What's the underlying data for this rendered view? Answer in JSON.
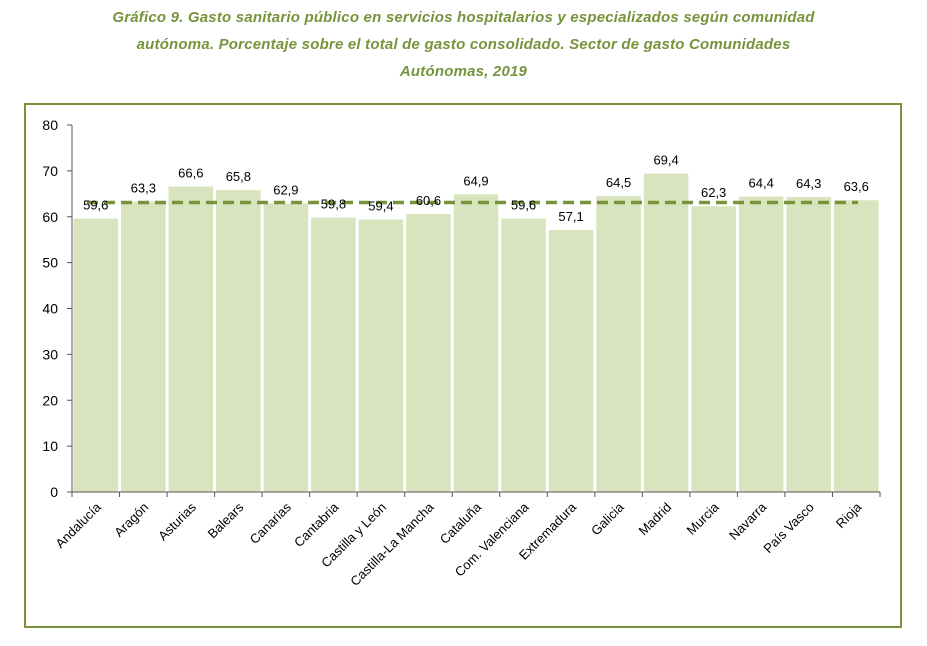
{
  "chart_data": {
    "type": "bar",
    "title": "Gráfico 9. Gasto sanitario público en servicios hospitalarios y especializados según comunidad autónoma. Porcentaje sobre el total de gasto consolidado. Sector de gasto Comunidades Autónomas, 2019",
    "title_lines": [
      "Gráfico 9. Gasto sanitario público en servicios hospitalarios y especializados según comunidad",
      "autónoma. Porcentaje sobre el total de gasto consolidado. Sector de gasto Comunidades",
      "Autónomas, 2019"
    ],
    "categories": [
      "Andalucía",
      "Aragón",
      "Asturias",
      "Balears",
      "Canarias",
      "Cantabria",
      "Castilla y León",
      "Castilla-La Mancha",
      "Cataluña",
      "Com. Valenciana",
      "Extremadura",
      "Galicia",
      "Madrid",
      "Murcia",
      "Navarra",
      "País Vasco",
      "Rioja"
    ],
    "value_labels": [
      "59,6",
      "63,3",
      "66,6",
      "65,8",
      "62,9",
      "59,8",
      "59,4",
      "60,6",
      "64,9",
      "59,6",
      "57,1",
      "64,5",
      "69,4",
      "62,3",
      "64,4",
      "64,3",
      "63,6"
    ],
    "values": [
      59.6,
      63.3,
      66.6,
      65.8,
      62.9,
      59.8,
      59.4,
      60.6,
      64.9,
      59.6,
      57.1,
      64.5,
      69.4,
      62.3,
      64.4,
      64.3,
      63.6
    ],
    "reference_line": 63.1,
    "ylim": [
      0,
      80
    ],
    "yticks": [
      0,
      10,
      20,
      30,
      40,
      50,
      60,
      70,
      80
    ],
    "xlabel": "",
    "ylabel": "",
    "grid": false,
    "legend": "none",
    "colors": {
      "bar_fill": "#d7e4bd",
      "bar_edge": "#ffffff",
      "reference_line": "#77933c",
      "title": "#77933c",
      "frame": "#77933c",
      "axis": "#000000"
    }
  }
}
